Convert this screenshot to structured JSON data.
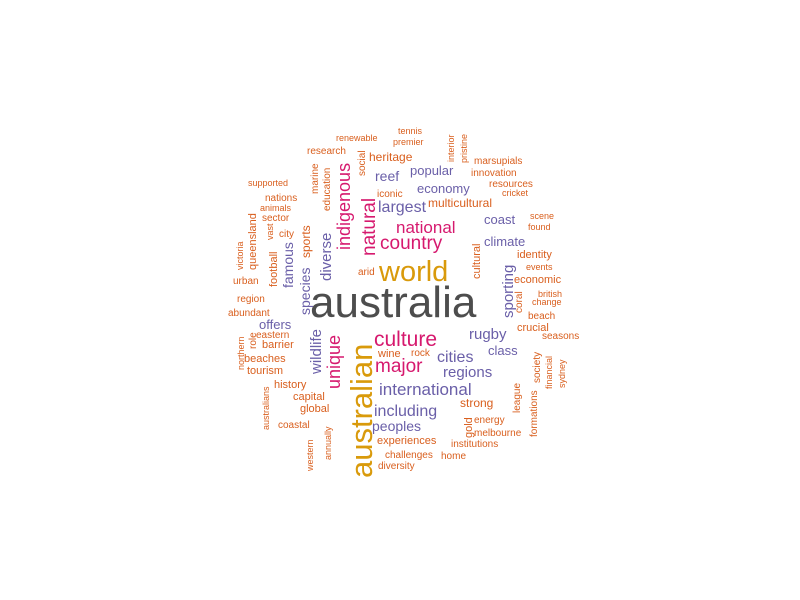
{
  "palette": {
    "dark": "#4d4d4d",
    "gold": "#d99a0b",
    "magenta": "#d6196e",
    "purple": "#6a5fa8",
    "orange": "#d95f1e"
  },
  "words": [
    {
      "t": "australia",
      "c": "dark"
    },
    {
      "t": "australian",
      "c": "gold"
    },
    {
      "t": "world",
      "c": "gold"
    },
    {
      "t": "culture",
      "c": "magenta"
    },
    {
      "t": "country",
      "c": "magenta"
    },
    {
      "t": "major",
      "c": "magenta"
    },
    {
      "t": "national",
      "c": "magenta"
    },
    {
      "t": "natural",
      "c": "magenta"
    },
    {
      "t": "indigenous",
      "c": "magenta"
    },
    {
      "t": "unique",
      "c": "magenta"
    },
    {
      "t": "international",
      "c": "purple"
    },
    {
      "t": "including",
      "c": "purple"
    },
    {
      "t": "largest",
      "c": "purple"
    },
    {
      "t": "cities",
      "c": "purple"
    },
    {
      "t": "regions",
      "c": "purple"
    },
    {
      "t": "diverse",
      "c": "purple"
    },
    {
      "t": "wildlife",
      "c": "purple"
    },
    {
      "t": "sporting",
      "c": "purple"
    },
    {
      "t": "rugby",
      "c": "purple"
    },
    {
      "t": "peoples",
      "c": "purple"
    },
    {
      "t": "economy",
      "c": "purple"
    },
    {
      "t": "popular",
      "c": "purple"
    },
    {
      "t": "reef",
      "c": "purple"
    },
    {
      "t": "climate",
      "c": "purple"
    },
    {
      "t": "coast",
      "c": "purple"
    },
    {
      "t": "class",
      "c": "purple"
    },
    {
      "t": "offers",
      "c": "purple"
    },
    {
      "t": "species",
      "c": "purple"
    },
    {
      "t": "famous",
      "c": "purple"
    },
    {
      "t": "heritage",
      "c": "orange"
    },
    {
      "t": "multicultural",
      "c": "orange"
    },
    {
      "t": "strong",
      "c": "orange"
    },
    {
      "t": "sports",
      "c": "orange"
    },
    {
      "t": "experiences",
      "c": "orange"
    },
    {
      "t": "cultural",
      "c": "orange"
    },
    {
      "t": "wine",
      "c": "orange"
    },
    {
      "t": "rock",
      "c": "orange"
    },
    {
      "t": "arid",
      "c": "orange"
    },
    {
      "t": "iconic",
      "c": "orange"
    },
    {
      "t": "gold",
      "c": "orange"
    },
    {
      "t": "coral",
      "c": "orange"
    },
    {
      "t": "league",
      "c": "orange"
    },
    {
      "t": "history",
      "c": "orange"
    },
    {
      "t": "capital",
      "c": "orange"
    },
    {
      "t": "global",
      "c": "orange"
    },
    {
      "t": "beaches",
      "c": "orange"
    },
    {
      "t": "tourism",
      "c": "orange"
    },
    {
      "t": "barrier",
      "c": "orange"
    },
    {
      "t": "eastern",
      "c": "orange"
    },
    {
      "t": "region",
      "c": "orange"
    },
    {
      "t": "urban",
      "c": "orange"
    },
    {
      "t": "city",
      "c": "orange"
    },
    {
      "t": "sector",
      "c": "orange"
    },
    {
      "t": "animals",
      "c": "orange"
    },
    {
      "t": "nations",
      "c": "orange"
    },
    {
      "t": "supported",
      "c": "orange"
    },
    {
      "t": "research",
      "c": "orange"
    },
    {
      "t": "renewable",
      "c": "orange"
    },
    {
      "t": "tennis",
      "c": "orange"
    },
    {
      "t": "premier",
      "c": "orange"
    },
    {
      "t": "marsupials",
      "c": "orange"
    },
    {
      "t": "innovation",
      "c": "orange"
    },
    {
      "t": "resources",
      "c": "orange"
    },
    {
      "t": "cricket",
      "c": "orange"
    },
    {
      "t": "scene",
      "c": "orange"
    },
    {
      "t": "found",
      "c": "orange"
    },
    {
      "t": "identity",
      "c": "orange"
    },
    {
      "t": "events",
      "c": "orange"
    },
    {
      "t": "economic",
      "c": "orange"
    },
    {
      "t": "british",
      "c": "orange"
    },
    {
      "t": "change",
      "c": "orange"
    },
    {
      "t": "beach",
      "c": "orange"
    },
    {
      "t": "crucial",
      "c": "orange"
    },
    {
      "t": "seasons",
      "c": "orange"
    },
    {
      "t": "energy",
      "c": "orange"
    },
    {
      "t": "melbourne",
      "c": "orange"
    },
    {
      "t": "institutions",
      "c": "orange"
    },
    {
      "t": "challenges",
      "c": "orange"
    },
    {
      "t": "home",
      "c": "orange"
    },
    {
      "t": "diversity",
      "c": "orange"
    },
    {
      "t": "coastal",
      "c": "orange"
    },
    {
      "t": "abundant",
      "c": "orange"
    },
    {
      "t": "role",
      "c": "orange"
    },
    {
      "t": "education",
      "c": "orange"
    },
    {
      "t": "marine",
      "c": "orange"
    },
    {
      "t": "social",
      "c": "orange"
    },
    {
      "t": "interior",
      "c": "orange"
    },
    {
      "t": "pristine",
      "c": "orange"
    },
    {
      "t": "vast",
      "c": "orange"
    },
    {
      "t": "queensland",
      "c": "orange"
    },
    {
      "t": "victoria",
      "c": "orange"
    },
    {
      "t": "football",
      "c": "orange"
    },
    {
      "t": "northern",
      "c": "orange"
    },
    {
      "t": "australians",
      "c": "orange"
    },
    {
      "t": "western",
      "c": "orange"
    },
    {
      "t": "annually",
      "c": "orange"
    },
    {
      "t": "society",
      "c": "orange"
    },
    {
      "t": "financial",
      "c": "orange"
    },
    {
      "t": "sydney",
      "c": "orange"
    },
    {
      "t": "formations",
      "c": "orange"
    }
  ]
}
